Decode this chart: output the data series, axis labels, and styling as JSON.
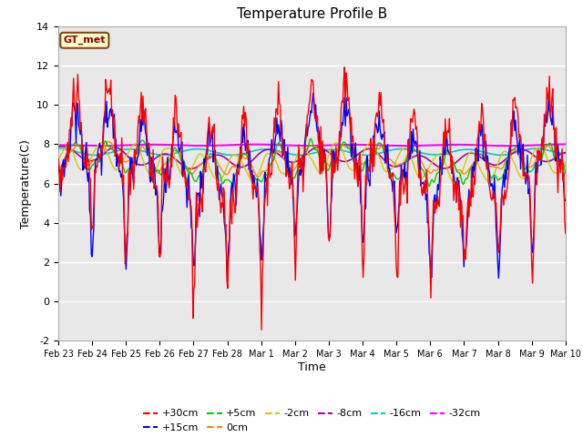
{
  "title": "Temperature Profile B",
  "xlabel": "Time",
  "ylabel": "Temperature(C)",
  "ylim": [
    -2,
    14
  ],
  "ax_background": "#e8e8e8",
  "annotation_text": "GT_met",
  "annotation_box_color": "#ffffcc",
  "annotation_box_edge": "#8B4513",
  "series_colors": {
    "+30cm": "#ff0000",
    "+15cm": "#0000ff",
    "+5cm": "#00cc00",
    "0cm": "#ff8800",
    "-2cm": "#cccc00",
    "-8cm": "#aa00aa",
    "-16cm": "#00cccc",
    "-32cm": "#ff00ff"
  },
  "date_ticks": [
    "Feb 23",
    "Feb 24",
    "Feb 25",
    "Feb 26",
    "Feb 27",
    "Feb 28",
    "Mar 1",
    "Mar 2",
    "Mar 3",
    "Mar 4",
    "Mar 5",
    "Mar 6",
    "Mar 7",
    "Mar 8",
    "Mar 9",
    "Mar 10"
  ],
  "n_points": 600,
  "seed": 42
}
